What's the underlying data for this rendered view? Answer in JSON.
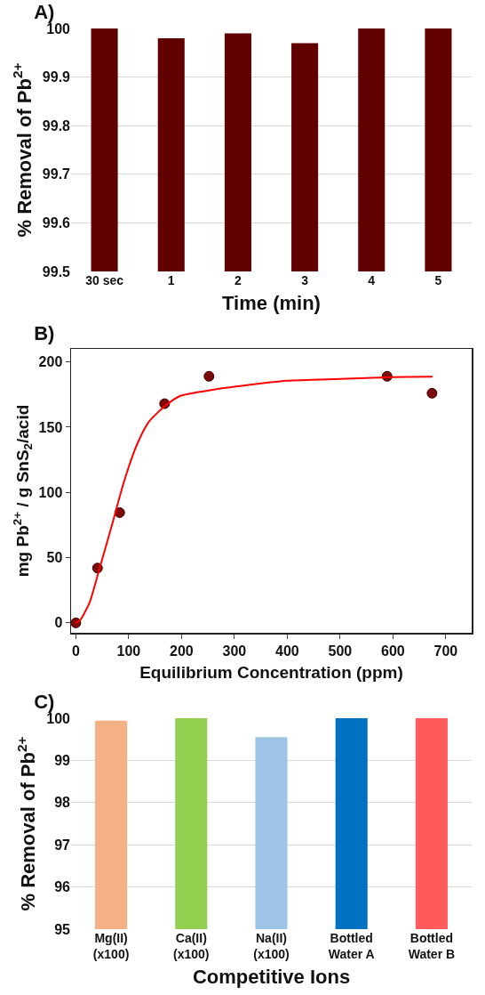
{
  "chart_data": [
    {
      "type": "bar",
      "title": "A)",
      "xlabel": "Time (min)",
      "ylabel": "% Removal of Pb$^{2+}$",
      "categories": [
        "30 sec",
        "1",
        "2",
        "3",
        "4",
        "5"
      ],
      "values": [
        100,
        99.98,
        99.99,
        99.97,
        100,
        100
      ],
      "color": "#600000",
      "ylim": [
        99.5,
        100
      ],
      "yticks": [
        99.5,
        99.6,
        99.7,
        99.8,
        99.9,
        {
          "value": 100,
          "label": "100"
        }
      ],
      "grid": "y"
    },
    {
      "type": "scatter",
      "title": "B)",
      "xlabel": "Equilibrium Concentration (ppm)",
      "ylabel": "mg Pb$^{2+}$ / g SnS$_{2}$/acid",
      "xlim": [
        -9,
        749
      ],
      "ylim": [
        -7.6,
        210
      ],
      "xticks": [
        0,
        100,
        200,
        300,
        400,
        500,
        600,
        700
      ],
      "yticks": [
        0,
        50,
        100,
        150,
        200
      ],
      "grid": false,
      "series": [
        {
          "type": "scatter",
          "color": "#7b0a0a",
          "marker": "circle",
          "x": [
            0,
            41,
            83,
            168,
            252,
            589,
            674
          ],
          "values": [
            0,
            42,
            84.5,
            168,
            189,
            189,
            176
          ]
        },
        {
          "type": "line",
          "color": "#ff0000",
          "marker": "none",
          "line_style": "solid",
          "x": [
            0,
            8,
            26,
            43,
            67,
            91,
            115,
            138,
            168,
            198,
            257,
            300,
            400,
            500,
            600,
            675
          ],
          "values": [
            0,
            2,
            15.5,
            39,
            73,
            108,
            136,
            154,
            166,
            174,
            178.5,
            181,
            185.6,
            187,
            188.4,
            188.6
          ]
        }
      ]
    },
    {
      "type": "bar",
      "title": "C)",
      "xlabel": "Competitive Ions",
      "ylabel": "% Removal of Pb$^{2+}$",
      "categories": [
        "Mg(II)\n(x100)",
        "Ca(II)\n(x100)",
        "Na(II)\n(x100)",
        "Bottled\nWater A",
        "Bottled\nWater B"
      ],
      "values": [
        99.94,
        100,
        99.55,
        100,
        100
      ],
      "colors": [
        "#f4b183",
        "#92d050",
        "#9dc3e6",
        "#0070c0",
        "#ff5b5b"
      ],
      "ylim": [
        95,
        100
      ],
      "yticks": [
        95,
        96,
        97,
        98,
        99,
        100
      ],
      "grid": "y"
    }
  ]
}
